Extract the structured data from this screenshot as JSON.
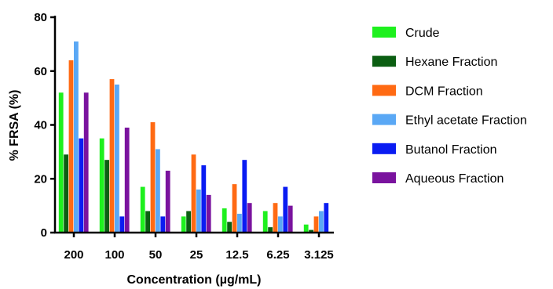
{
  "chart_data": {
    "type": "bar",
    "xlabel": "Concentration (µg/mL)",
    "ylabel": "% FRSA (%)",
    "ylim": [
      0,
      80
    ],
    "yticks": [
      0,
      20,
      40,
      60,
      80
    ],
    "categories": [
      "200",
      "100",
      "50",
      "25",
      "12.5",
      "6.25",
      "3.125"
    ],
    "legend_position": "right",
    "series": [
      {
        "name": "Crude",
        "color": "#1ef01e",
        "values": [
          52,
          35,
          17,
          6,
          9,
          8,
          3
        ]
      },
      {
        "name": "Hexane Fraction",
        "color": "#0b5e12",
        "values": [
          29,
          27,
          8,
          8,
          4,
          2,
          1
        ]
      },
      {
        "name": "DCM Fraction",
        "color": "#ff6a13",
        "values": [
          64,
          57,
          41,
          29,
          18,
          11,
          6
        ]
      },
      {
        "name": "Ethyl acetate Fraction",
        "color": "#5aa8f5",
        "values": [
          71,
          55,
          31,
          16,
          7,
          6,
          8
        ]
      },
      {
        "name": "Butanol Fraction",
        "color": "#0a1cf2",
        "values": [
          35,
          6,
          6,
          25,
          27,
          17,
          11
        ]
      },
      {
        "name": "Aqueous Fraction",
        "color": "#7a139e",
        "values": [
          52,
          39,
          23,
          14,
          11,
          10,
          0
        ]
      }
    ]
  }
}
